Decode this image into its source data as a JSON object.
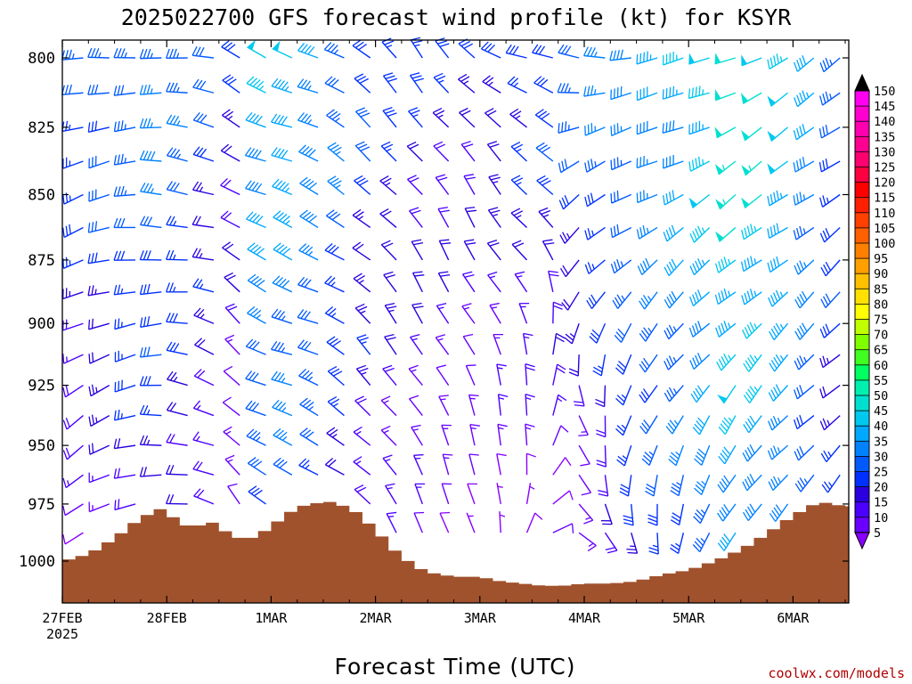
{
  "chart_data": {
    "type": "wind_barb_time_height",
    "title": "2025022700 GFS forecast wind profile (kt) for KSYR",
    "xlabel": "Forecast Time (UTC)",
    "credit": "coolwx.com/models",
    "x_ticks": [
      {
        "t": 0,
        "label": "27FEB",
        "sublabel": "2025"
      },
      {
        "t": 1,
        "label": "28FEB"
      },
      {
        "t": 2,
        "label": "1MAR"
      },
      {
        "t": 3,
        "label": "2MAR"
      },
      {
        "t": 4,
        "label": "3MAR"
      },
      {
        "t": 5,
        "label": "4MAR"
      },
      {
        "t": 6,
        "label": "5MAR"
      },
      {
        "t": 7,
        "label": "6MAR"
      }
    ],
    "x_range_days": [
      0,
      7.5
    ],
    "y_ticks": [
      800,
      825,
      850,
      875,
      900,
      925,
      950,
      975,
      1000
    ],
    "y_range_hpa": [
      786,
      1015
    ],
    "colorbar": {
      "labels": [
        5,
        10,
        15,
        20,
        25,
        30,
        35,
        40,
        45,
        50,
        55,
        60,
        65,
        70,
        75,
        80,
        85,
        90,
        95,
        100,
        105,
        110,
        115,
        120,
        125,
        130,
        135,
        140,
        145,
        150
      ],
      "colors": [
        "#8800ff",
        "#6a00ff",
        "#4b00ff",
        "#2a00e0",
        "#0030ff",
        "#005aff",
        "#0082ff",
        "#00a8ff",
        "#00c8ee",
        "#00e0d0",
        "#00f0b0",
        "#00ff60",
        "#40ff20",
        "#80ff00",
        "#c0ff00",
        "#ffff00",
        "#ffe000",
        "#ffc000",
        "#ffa000",
        "#ff8000",
        "#ff6000",
        "#ff4000",
        "#ff2000",
        "#ff0000",
        "#ff0040",
        "#ff0070",
        "#ff0090",
        "#ff00b0",
        "#ff00d0",
        "#ff00f0"
      ]
    },
    "terrain_color": "#a0522d",
    "surface_pressure_hpa": [
      [
        0,
        1000
      ],
      [
        0.25,
        997
      ],
      [
        0.5,
        990
      ],
      [
        0.75,
        981
      ],
      [
        0.95,
        977
      ],
      [
        1.1,
        982
      ],
      [
        1.25,
        986
      ],
      [
        1.4,
        982
      ],
      [
        1.6,
        988
      ],
      [
        1.75,
        991
      ],
      [
        1.9,
        988
      ],
      [
        2.05,
        983
      ],
      [
        2.2,
        978
      ],
      [
        2.35,
        975
      ],
      [
        2.6,
        974
      ],
      [
        2.8,
        978
      ],
      [
        3.0,
        986
      ],
      [
        3.2,
        996
      ],
      [
        3.4,
        1003
      ],
      [
        3.6,
        1006
      ],
      [
        3.8,
        1007
      ],
      [
        4.0,
        1007
      ],
      [
        4.2,
        1009
      ],
      [
        4.4,
        1010
      ],
      [
        4.6,
        1011
      ],
      [
        4.8,
        1011
      ],
      [
        5.0,
        1010
      ],
      [
        5.25,
        1010
      ],
      [
        5.5,
        1009
      ],
      [
        5.75,
        1006
      ],
      [
        6.0,
        1004
      ],
      [
        6.25,
        1000
      ],
      [
        6.5,
        995
      ],
      [
        6.75,
        988
      ],
      [
        7.0,
        980
      ],
      [
        7.25,
        974
      ],
      [
        7.5,
        976
      ]
    ],
    "wind_regimes": [
      {
        "t": 0.0,
        "lower_dir": 220,
        "lower_spd": 8,
        "upper_dir": 255,
        "upper_spd": 30
      },
      {
        "t": 0.5,
        "lower_dir": 240,
        "lower_spd": 15,
        "upper_dir": 265,
        "upper_spd": 35
      },
      {
        "t": 1.0,
        "lower_dir": 265,
        "lower_spd": 22,
        "upper_dir": 275,
        "upper_spd": 38
      },
      {
        "t": 1.5,
        "lower_dir": 300,
        "lower_spd": 12,
        "upper_dir": 280,
        "upper_spd": 30
      },
      {
        "t": 1.75,
        "lower_dir": 330,
        "lower_spd": 7,
        "upper_dir": 300,
        "upper_spd": 25
      },
      {
        "t": 2.0,
        "lower_dir": 290,
        "lower_spd": 30,
        "upper_dir": 290,
        "upper_spd": 52
      },
      {
        "t": 2.5,
        "lower_dir": 295,
        "lower_spd": 25,
        "upper_dir": 295,
        "upper_spd": 40
      },
      {
        "t": 3.0,
        "lower_dir": 320,
        "lower_spd": 15,
        "upper_dir": 310,
        "upper_spd": 30
      },
      {
        "t": 3.5,
        "lower_dir": 335,
        "lower_spd": 10,
        "upper_dir": 320,
        "upper_spd": 25
      },
      {
        "t": 4.0,
        "lower_dir": 350,
        "lower_spd": 6,
        "upper_dir": 315,
        "upper_spd": 25
      },
      {
        "t": 4.5,
        "lower_dir": 30,
        "lower_spd": 7,
        "upper_dir": 285,
        "upper_spd": 30
      },
      {
        "t": 5.0,
        "lower_dir": 120,
        "lower_spd": 8,
        "upper_dir": 275,
        "upper_spd": 35
      },
      {
        "t": 5.5,
        "lower_dir": 170,
        "lower_spd": 25,
        "upper_dir": 265,
        "upper_spd": 38
      },
      {
        "t": 6.0,
        "lower_dir": 190,
        "lower_spd": 30,
        "upper_dir": 255,
        "upper_spd": 45
      },
      {
        "t": 6.5,
        "lower_dir": 205,
        "lower_spd": 40,
        "upper_dir": 245,
        "upper_spd": 55
      },
      {
        "t": 7.0,
        "lower_dir": 215,
        "lower_spd": 35,
        "upper_dir": 240,
        "upper_spd": 48
      },
      {
        "t": 7.5,
        "lower_dir": 220,
        "lower_spd": 20,
        "upper_dir": 235,
        "upper_spd": 30
      }
    ],
    "barb_levels_hpa": [
      800,
      812.5,
      825,
      837.5,
      850,
      862.5,
      875,
      887.5,
      900,
      912.5,
      925,
      937.5,
      950,
      962.5,
      975,
      987.5
    ],
    "barb_interval_hours": 6
  }
}
